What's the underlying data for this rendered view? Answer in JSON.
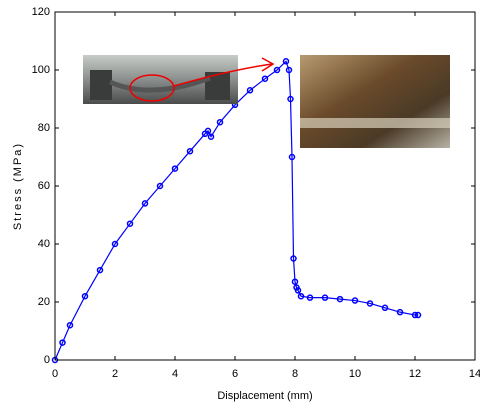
{
  "chart_data": {
    "type": "line",
    "x_label": "Displacement (mm)",
    "y_label": "Stress (MPa)",
    "series": [
      {
        "color": "#0000ff",
        "x": [
          0,
          0.25,
          0.5,
          1,
          1.5,
          2,
          2.5,
          3,
          3.5,
          4,
          4.5,
          5,
          5.1,
          5.2,
          5.5,
          6,
          6.5,
          7,
          7.4,
          7.7,
          7.8,
          7.85,
          7.9,
          7.95,
          8.0,
          8.05,
          8.1,
          8.2,
          8.5,
          9,
          9.5,
          10,
          10.5,
          11,
          11.5,
          12,
          12.1
        ],
        "values": [
          0,
          6,
          12,
          22,
          31,
          40,
          47,
          54,
          60,
          66,
          72,
          78,
          79,
          77,
          82,
          88,
          93,
          97,
          100,
          103,
          100,
          90,
          70,
          35,
          27,
          25,
          24,
          22,
          21.5,
          21.5,
          21,
          20.5,
          19.5,
          18,
          16.5,
          15.5,
          15.5
        ]
      }
    ],
    "xlim": [
      0,
      14
    ],
    "xticks": [
      0,
      2,
      4,
      6,
      8,
      10,
      12,
      14
    ],
    "ylim": [
      0,
      120
    ],
    "yticks": [
      0,
      20,
      40,
      60,
      80,
      100,
      120
    ],
    "grid": false
  }
}
